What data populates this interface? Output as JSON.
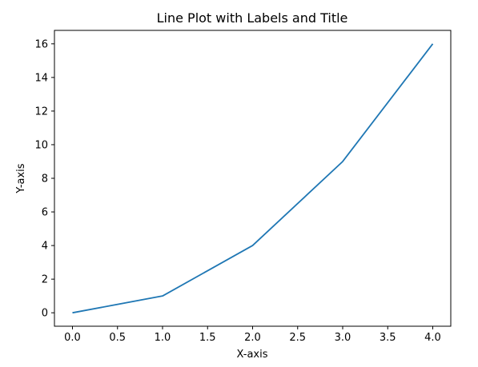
{
  "chart_data": {
    "type": "line",
    "title": "Line Plot with Labels and Title",
    "xlabel": "X-axis",
    "ylabel": "Y-axis",
    "x": [
      0,
      1,
      2,
      3,
      4
    ],
    "series": [
      {
        "values": [
          0,
          1,
          4,
          9,
          16
        ]
      }
    ],
    "xlim": [
      -0.2,
      4.2
    ],
    "ylim": [
      -0.8,
      16.8
    ],
    "xticks": [
      0.0,
      0.5,
      1.0,
      1.5,
      2.0,
      2.5,
      3.0,
      3.5,
      4.0
    ],
    "xtick_labels": [
      "0.0",
      "0.5",
      "1.0",
      "1.5",
      "2.0",
      "2.5",
      "3.0",
      "3.5",
      "4.0"
    ],
    "yticks": [
      0,
      2,
      4,
      6,
      8,
      10,
      12,
      14,
      16
    ],
    "ytick_labels": [
      "0",
      "2",
      "4",
      "6",
      "8",
      "10",
      "12",
      "14",
      "16"
    ],
    "grid": false,
    "line_color": "#1f77b4"
  }
}
